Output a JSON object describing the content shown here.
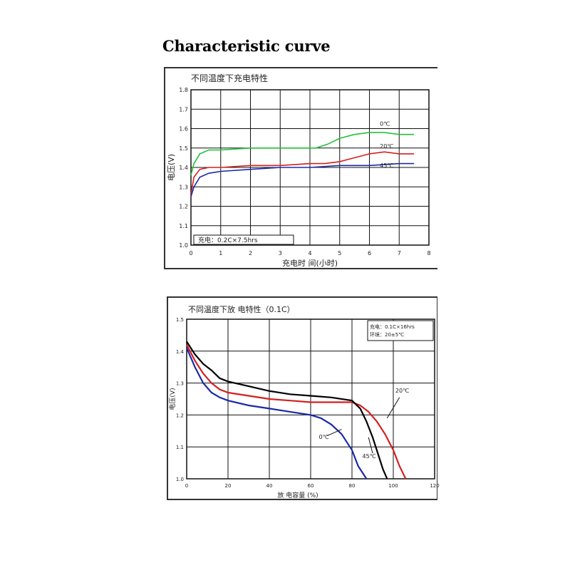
{
  "heading": "Characteristic curve",
  "chart_data": [
    {
      "type": "line",
      "title": "不同温度下充电特性",
      "xlabel": "充电时 间(小时)",
      "ylabel": "电压(V)",
      "xlim": [
        0,
        8
      ],
      "ylim": [
        1.0,
        1.8
      ],
      "x_ticks": [
        "0",
        "1",
        "2",
        "3",
        "4",
        "5",
        "6",
        "7",
        "8"
      ],
      "y_ticks": [
        "1.0",
        "1.1",
        "1.2",
        "1.3",
        "1.4",
        "1.5",
        "1.6",
        "1.7",
        "1.8"
      ],
      "grid": true,
      "annotation": "充电：0.2C×7.5hrs",
      "series": [
        {
          "name": "0℃",
          "color": "#22c23a",
          "x": [
            0,
            0.1,
            0.3,
            0.6,
            1,
            2,
            3,
            3.8,
            4.2,
            4.6,
            5,
            5.5,
            6,
            6.5,
            7,
            7.5
          ],
          "y": [
            1.36,
            1.42,
            1.47,
            1.49,
            1.49,
            1.5,
            1.5,
            1.5,
            1.5,
            1.52,
            1.55,
            1.57,
            1.58,
            1.58,
            1.57,
            1.57
          ]
        },
        {
          "name": "20℃",
          "color": "#d42020",
          "x": [
            0,
            0.1,
            0.3,
            0.6,
            1,
            2,
            3,
            4,
            4.5,
            5,
            5.5,
            6,
            6.5,
            7,
            7.5
          ],
          "y": [
            1.26,
            1.35,
            1.39,
            1.4,
            1.4,
            1.41,
            1.41,
            1.42,
            1.42,
            1.43,
            1.45,
            1.47,
            1.48,
            1.47,
            1.47
          ]
        },
        {
          "name": "45℃",
          "color": "#1a2aa8",
          "x": [
            0,
            0.1,
            0.3,
            0.6,
            1,
            2,
            3,
            4,
            5,
            6,
            7,
            7.5
          ],
          "y": [
            1.25,
            1.3,
            1.35,
            1.37,
            1.38,
            1.39,
            1.4,
            1.4,
            1.41,
            1.41,
            1.42,
            1.42
          ]
        }
      ]
    },
    {
      "type": "line",
      "title": "不同温度下放 电特性（0.1C）",
      "xlabel": "放 电容量 (%)",
      "ylabel": "电压(V)",
      "xlim": [
        0,
        120
      ],
      "ylim": [
        1.0,
        1.5
      ],
      "x_ticks": [
        "0",
        "20",
        "40",
        "60",
        "80",
        "100",
        "120"
      ],
      "y_ticks": [
        "1.0",
        "1.1",
        "1.2",
        "1.3",
        "1.4",
        "1.5"
      ],
      "grid": true,
      "annotation_lines": [
        "充电：0.1C×16hrs",
        "环境：20±5℃"
      ],
      "series": [
        {
          "name": "20℃",
          "color": "#d42020",
          "x": [
            0,
            4,
            8,
            12,
            16,
            20,
            30,
            40,
            50,
            60,
            70,
            80,
            84,
            88,
            92,
            96,
            100,
            103,
            106
          ],
          "y": [
            1.42,
            1.37,
            1.33,
            1.3,
            1.28,
            1.27,
            1.26,
            1.25,
            1.245,
            1.24,
            1.24,
            1.24,
            1.23,
            1.21,
            1.18,
            1.14,
            1.09,
            1.04,
            1.0
          ]
        },
        {
          "name": "",
          "color": "#000000",
          "x": [
            0,
            4,
            8,
            12,
            16,
            20,
            30,
            40,
            50,
            60,
            70,
            80,
            84,
            87,
            90,
            93,
            95,
            97
          ],
          "y": [
            1.43,
            1.39,
            1.36,
            1.34,
            1.315,
            1.305,
            1.29,
            1.275,
            1.265,
            1.26,
            1.255,
            1.245,
            1.22,
            1.18,
            1.13,
            1.07,
            1.03,
            1.0
          ]
        },
        {
          "name": "0℃",
          "color": "#1a2aa8",
          "x": [
            0,
            4,
            8,
            12,
            16,
            20,
            30,
            40,
            50,
            55,
            60,
            65,
            70,
            75,
            80,
            83,
            85,
            87
          ],
          "y": [
            1.41,
            1.35,
            1.3,
            1.27,
            1.255,
            1.245,
            1.23,
            1.22,
            1.21,
            1.205,
            1.2,
            1.19,
            1.17,
            1.14,
            1.09,
            1.04,
            1.02,
            1.0
          ]
        }
      ],
      "labels": {
        "series_20": "20℃",
        "series_0": "0℃",
        "series_45": "45℃"
      }
    }
  ]
}
